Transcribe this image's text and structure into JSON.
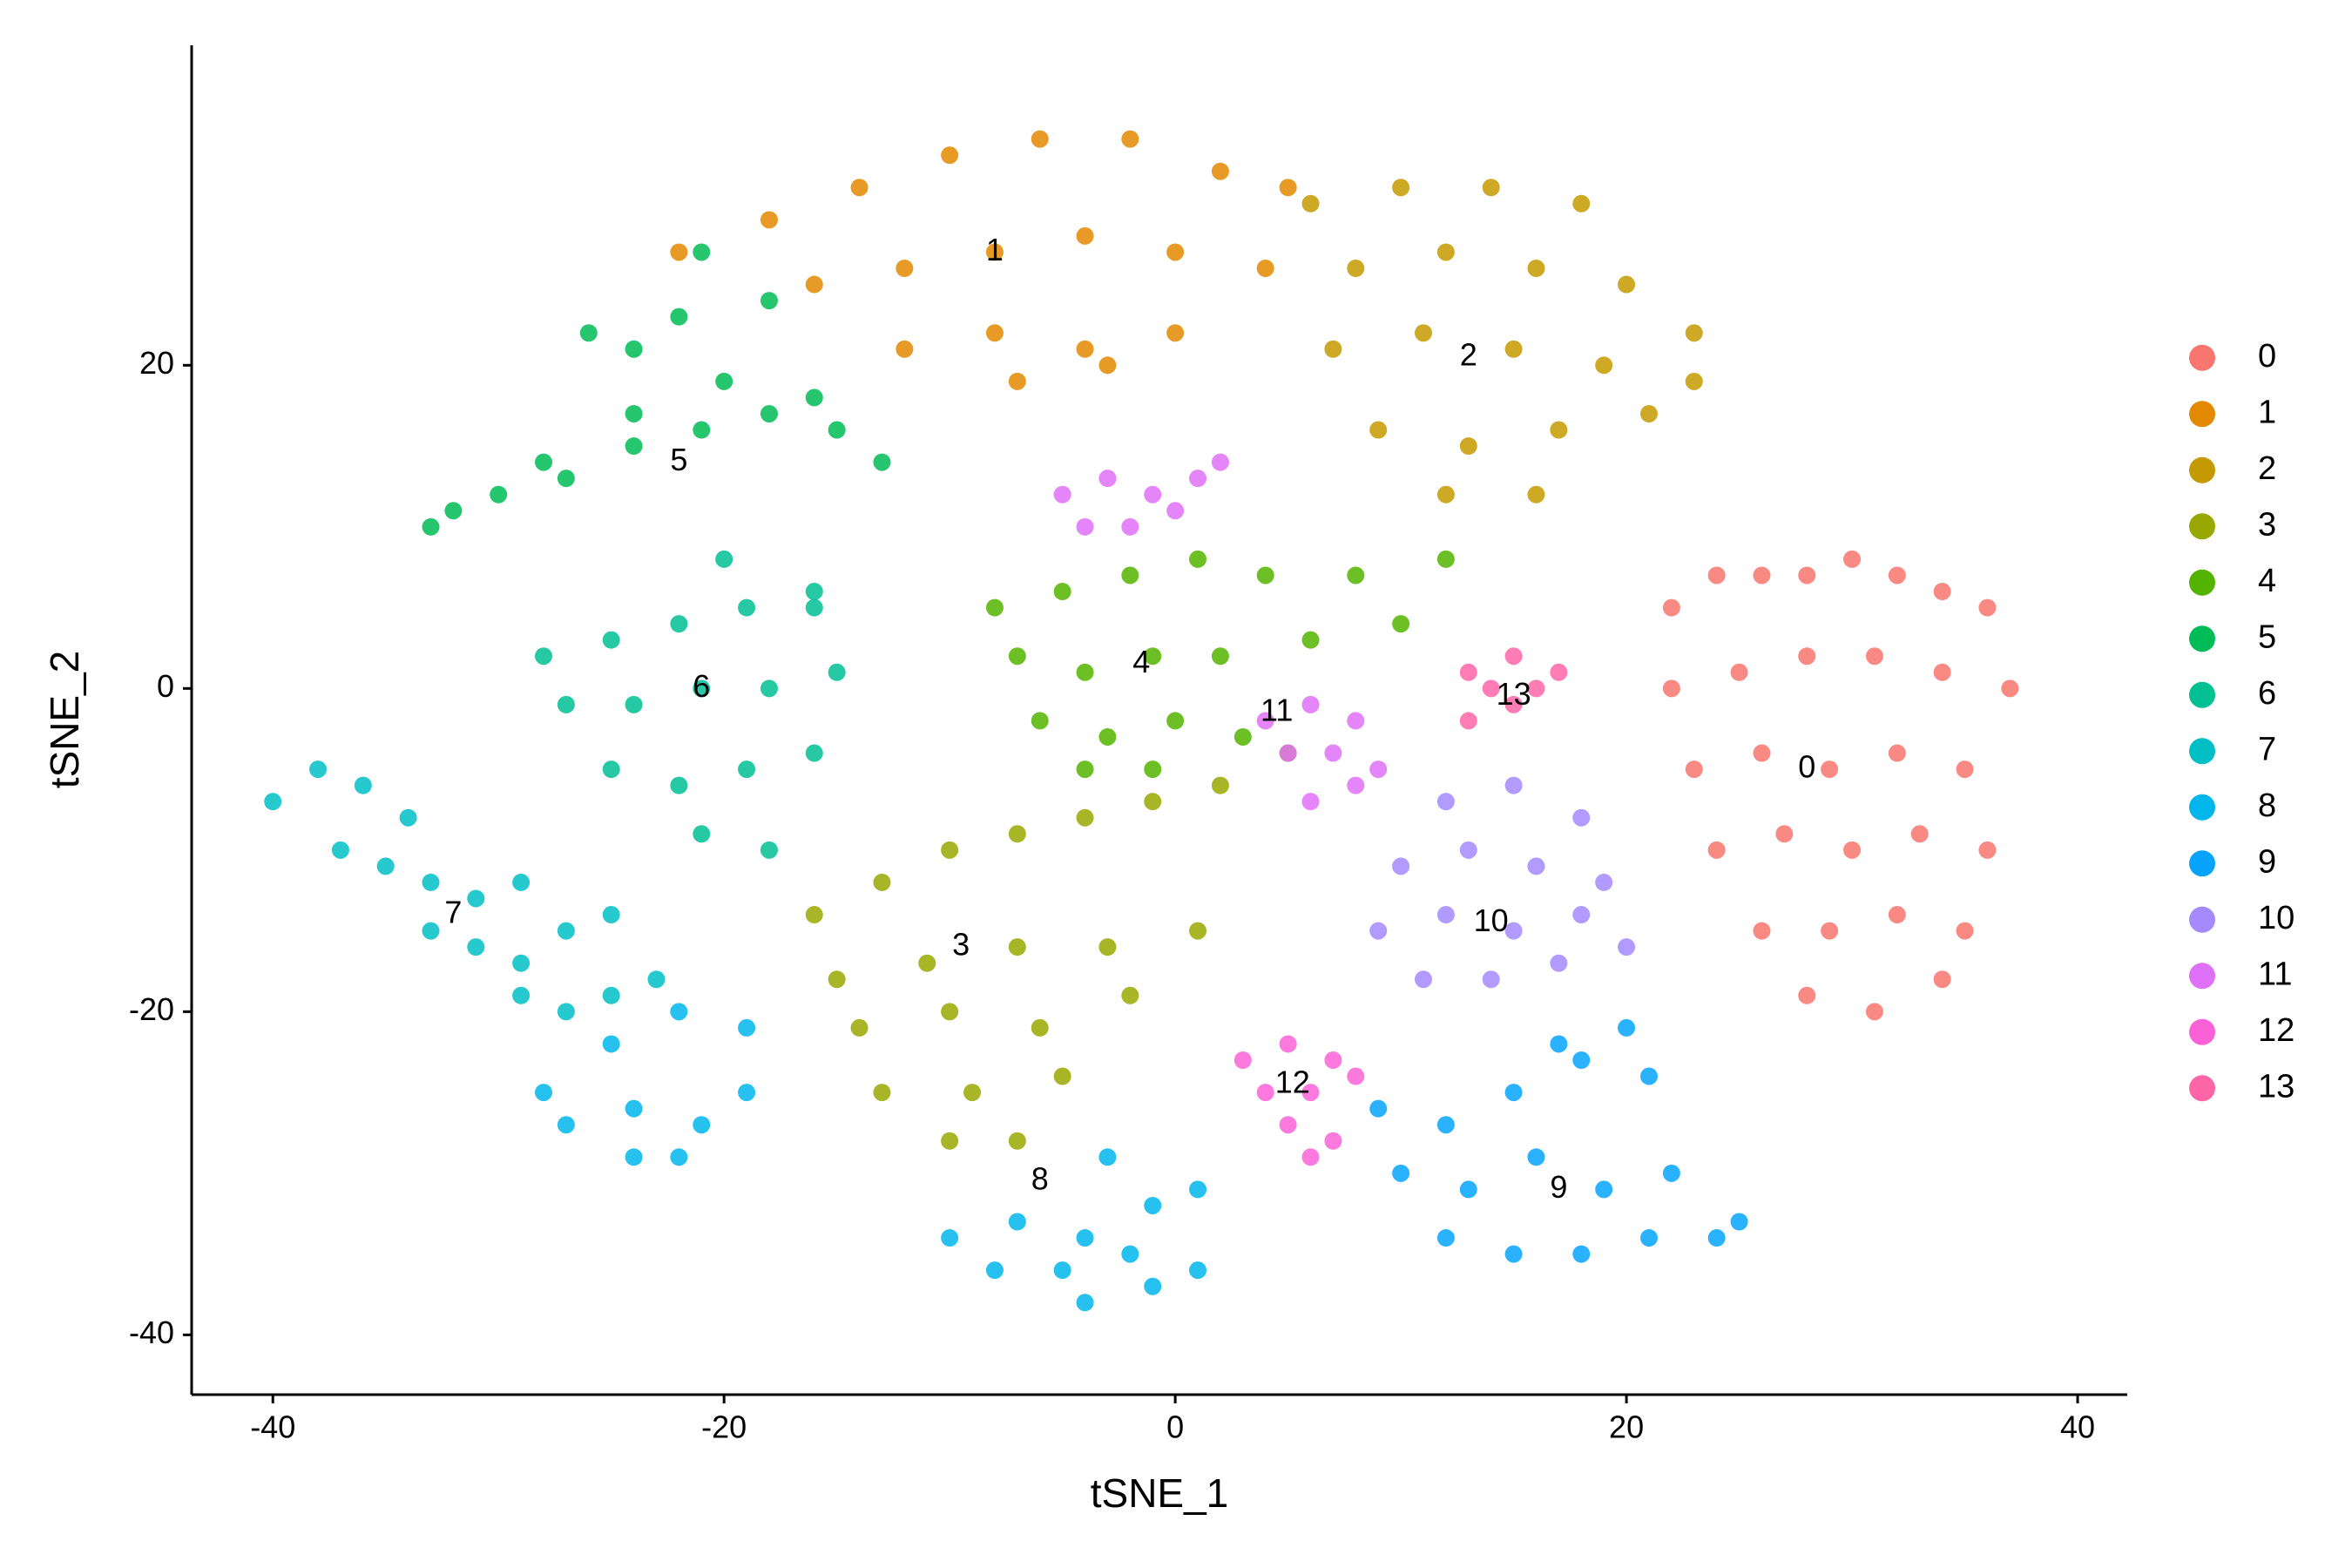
{
  "chart_data": {
    "type": "scatter",
    "x_label": "tSNE_1",
    "y_label": "tSNE_2",
    "xlim": [
      -43.6,
      42.2
    ],
    "ylim": [
      -43.7,
      39.8
    ],
    "xticks": [
      -40,
      -20,
      0,
      20,
      40
    ],
    "yticks": [
      -40,
      -20,
      0,
      20
    ],
    "grid": false,
    "legend": "right",
    "series": [
      {
        "name": "0",
        "color": "#F8766D",
        "label_xy": [
          28,
          -5
        ],
        "x": [
          22,
          24,
          26,
          28,
          30,
          32,
          34,
          36,
          22,
          25,
          28,
          31,
          34,
          37,
          23,
          26,
          29,
          32,
          35,
          24,
          27,
          30,
          33,
          36,
          26,
          29,
          32,
          35,
          28,
          31,
          34
        ],
        "y": [
          5,
          7,
          7,
          7,
          8,
          7,
          6,
          5,
          0,
          1,
          2,
          2,
          1,
          0,
          -5,
          -4,
          -5,
          -4,
          -5,
          -10,
          -9,
          -10,
          -9,
          -10,
          -15,
          -15,
          -14,
          -15,
          -19,
          -20,
          -18
        ]
      },
      {
        "name": "1",
        "color": "#E38900",
        "label_xy": [
          -8,
          27
        ],
        "x": [
          -22,
          -18,
          -14,
          -10,
          -6,
          -2,
          2,
          5,
          -16,
          -12,
          -8,
          -4,
          0,
          4,
          -12,
          -8,
          -4,
          0,
          -7,
          -3
        ],
        "y": [
          27,
          29,
          31,
          33,
          34,
          34,
          32,
          31,
          25,
          26,
          27,
          28,
          27,
          26,
          21,
          22,
          21,
          22,
          19,
          20
        ]
      },
      {
        "name": "2",
        "color": "#C49A00",
        "label_xy": [
          13,
          20.5
        ],
        "x": [
          6,
          10,
          14,
          18,
          8,
          12,
          16,
          20,
          23,
          7,
          11,
          15,
          19,
          23,
          9,
          13,
          17,
          21,
          12,
          16
        ],
        "y": [
          30,
          31,
          31,
          30,
          26,
          27,
          26,
          25,
          22,
          21,
          22,
          21,
          20,
          19,
          16,
          15,
          16,
          17,
          12,
          12
        ]
      },
      {
        "name": "3",
        "color": "#99A800",
        "label_xy": [
          -9.5,
          -16
        ],
        "x": [
          -16,
          -13,
          -10,
          -7,
          -4,
          -1,
          2,
          5,
          -15,
          -11,
          -7,
          -3,
          1,
          -14,
          -10,
          -6,
          -2,
          -13,
          -9,
          -5,
          -10,
          -7
        ],
        "y": [
          -14,
          -12,
          -10,
          -9,
          -8,
          -7,
          -6,
          -4,
          -18,
          -17,
          -16,
          -16,
          -15,
          -21,
          -20,
          -21,
          -19,
          -25,
          -25,
          -24,
          -28,
          -28
        ]
      },
      {
        "name": "4",
        "color": "#53B400",
        "label_xy": [
          -1.5,
          1.5
        ],
        "x": [
          -8,
          -5,
          -2,
          1,
          4,
          8,
          12,
          -7,
          -4,
          -1,
          2,
          6,
          10,
          -6,
          -3,
          0,
          3,
          -4,
          -1
        ],
        "y": [
          5,
          6,
          7,
          8,
          7,
          7,
          8,
          2,
          1,
          2,
          2,
          3,
          4,
          -2,
          -3,
          -2,
          -3,
          -5,
          -5
        ]
      },
      {
        "name": "5",
        "color": "#00BC56",
        "label_xy": [
          -22,
          14
        ],
        "x": [
          -33,
          -30,
          -27,
          -24,
          -21,
          -18,
          -15,
          -32,
          -28,
          -24,
          -20,
          -16,
          -13,
          -26,
          -22,
          -18,
          -24,
          -21
        ],
        "y": [
          10,
          12,
          13,
          15,
          16,
          17,
          16,
          11,
          14,
          17,
          19,
          18,
          14,
          22,
          23,
          24,
          21,
          27
        ]
      },
      {
        "name": "6",
        "color": "#00C094",
        "label_xy": [
          -21,
          0
        ],
        "x": [
          -28,
          -25,
          -22,
          -19,
          -16,
          -27,
          -24,
          -21,
          -18,
          -15,
          -25,
          -22,
          -19,
          -16,
          -21,
          -18,
          -16,
          -20
        ],
        "y": [
          2,
          3,
          4,
          5,
          6,
          -1,
          -1,
          0,
          0,
          1,
          -5,
          -6,
          -5,
          -4,
          -9,
          -10,
          5,
          8
        ]
      },
      {
        "name": "7",
        "color": "#00BFC4",
        "label_xy": [
          -32,
          -14
        ],
        "x": [
          -40,
          -38,
          -36,
          -34,
          -37,
          -35,
          -33,
          -31,
          -29,
          -33,
          -31,
          -29,
          -27,
          -25,
          -29,
          -27,
          -25,
          -23
        ],
        "y": [
          -7,
          -5,
          -6,
          -8,
          -10,
          -11,
          -12,
          -13,
          -12,
          -15,
          -16,
          -17,
          -15,
          -14,
          -19,
          -20,
          -19,
          -18
        ]
      },
      {
        "name": "8",
        "color": "#00B6EB",
        "label_xy": [
          -6,
          -30.5
        ],
        "x": [
          -28,
          -25,
          -22,
          -19,
          -27,
          -24,
          -21,
          -19,
          -24,
          -22,
          -10,
          -7,
          -4,
          -1,
          1,
          -8,
          -5,
          -2,
          1,
          -4,
          -1,
          -3
        ],
        "y": [
          -25,
          -22,
          -20,
          -21,
          -27,
          -26,
          -27,
          -25,
          -29,
          -29,
          -34,
          -33,
          -34,
          -32,
          -31,
          -36,
          -36,
          -35,
          -36,
          -38,
          -37,
          -29
        ]
      },
      {
        "name": "9",
        "color": "#06A4FF",
        "label_xy": [
          17,
          -31
        ],
        "x": [
          9,
          12,
          15,
          18,
          21,
          10,
          13,
          16,
          19,
          22,
          25,
          12,
          15,
          18,
          21,
          24,
          17,
          20
        ],
        "y": [
          -26,
          -27,
          -25,
          -23,
          -24,
          -30,
          -31,
          -29,
          -31,
          -30,
          -33,
          -34,
          -35,
          -35,
          -34,
          -34,
          -22,
          -21
        ]
      },
      {
        "name": "10",
        "color": "#A58AFF",
        "label_xy": [
          14,
          -14.5
        ],
        "x": [
          12,
          15,
          18,
          10,
          13,
          16,
          19,
          9,
          12,
          15,
          18,
          20,
          11,
          14,
          17
        ],
        "y": [
          -7,
          -6,
          -8,
          -11,
          -10,
          -11,
          -12,
          -15,
          -14,
          -15,
          -14,
          -16,
          -18,
          -18,
          -17
        ]
      },
      {
        "name": "11",
        "color": "#DF70F8",
        "label_xy": [
          4.5,
          -1.5
        ],
        "x": [
          -5,
          -3,
          -1,
          1,
          2,
          -4,
          -2,
          0,
          4,
          6,
          8,
          5,
          7,
          9,
          6,
          8
        ],
        "y": [
          12,
          13,
          12,
          13,
          14,
          10,
          10,
          11,
          -2,
          -1,
          -2,
          -4,
          -4,
          -5,
          -7,
          -6
        ]
      },
      {
        "name": "12",
        "color": "#FB61D7",
        "label_xy": [
          5.2,
          -24.5
        ],
        "x": [
          3,
          5,
          7,
          4,
          6,
          8,
          5,
          7,
          6
        ],
        "y": [
          -23,
          -22,
          -23,
          -25,
          -25,
          -24,
          -27,
          -28,
          -29
        ]
      },
      {
        "name": "13",
        "color": "#FF66A8",
        "label_xy": [
          15,
          -0.5
        ],
        "x": [
          13,
          15,
          17,
          14,
          16,
          13,
          15
        ],
        "y": [
          1,
          2,
          1,
          0,
          0,
          -2,
          -1
        ]
      }
    ]
  }
}
